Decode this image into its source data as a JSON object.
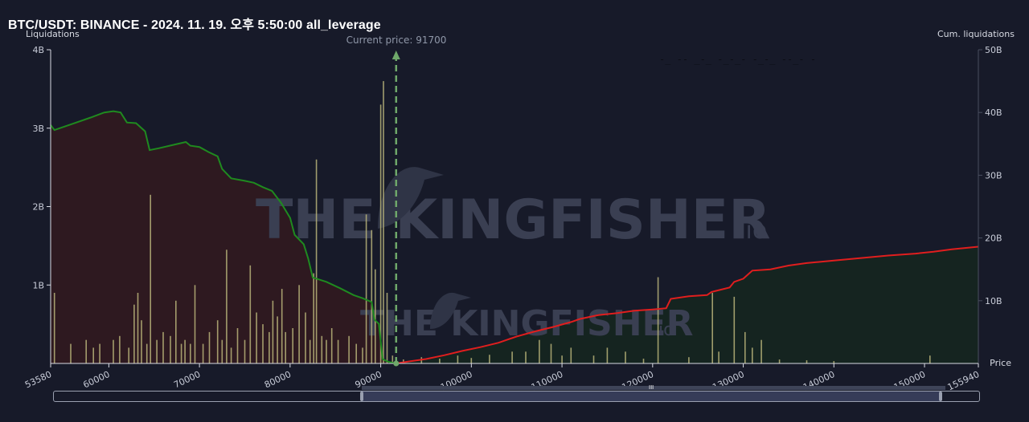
{
  "title": "BTC/USDT: BINANCE - 2024. 11. 19. 오후 5:50:00 all_leverage",
  "watermark": "THE KINGFISHER",
  "watermark_suffix": ".io",
  "current_price_label": "Current price: 91700",
  "colors": {
    "background": "#171a29",
    "short_line": "#1f8a1f",
    "long_line": "#e01e1e",
    "short_area": "#2e1920",
    "long_area": "#152420",
    "bars": "#b8b47a",
    "current_price": "#6fa86a"
  },
  "chart_data": {
    "type": "bar",
    "ylabel": "Liquidations",
    "y2label": "Cum. liquidations",
    "xlabel": "Price",
    "xlim": [
      53580,
      155940
    ],
    "ylim": [
      0,
      4000000000
    ],
    "y2lim": [
      0,
      50000000000
    ],
    "current_price": 91700,
    "x_ticks": [
      "53580",
      "60000",
      "70000",
      "80000",
      "90000",
      "100000",
      "110000",
      "120000",
      "130000",
      "140000",
      "150000",
      "155940"
    ],
    "x_tick_values": [
      53580,
      60000,
      70000,
      80000,
      90000,
      100000,
      110000,
      120000,
      130000,
      140000,
      150000,
      155940
    ],
    "y_ticks": [
      "4B",
      "3B",
      "2B",
      "1B"
    ],
    "y_tick_values": [
      4000000000,
      3000000000,
      2000000000,
      1000000000
    ],
    "y2_ticks": [
      "50B",
      "40B",
      "30B",
      "20B",
      "10B"
    ],
    "y2_tick_values": [
      50000000000,
      40000000000,
      30000000000,
      20000000000,
      10000000000
    ],
    "cum_short": [
      [
        53580,
        38000000000
      ],
      [
        54000,
        37200000000
      ],
      [
        56000,
        38200000000
      ],
      [
        58000,
        39200000000
      ],
      [
        59500,
        40000000000
      ],
      [
        60500,
        40200000000
      ],
      [
        61300,
        40000000000
      ],
      [
        62000,
        38400000000
      ],
      [
        63000,
        38300000000
      ],
      [
        64000,
        37000000000
      ],
      [
        64500,
        34000000000
      ],
      [
        65500,
        34300000000
      ],
      [
        67000,
        34800000000
      ],
      [
        68500,
        35300000000
      ],
      [
        69000,
        34700000000
      ],
      [
        70000,
        34500000000
      ],
      [
        71000,
        33700000000
      ],
      [
        72000,
        33000000000
      ],
      [
        72500,
        31000000000
      ],
      [
        73500,
        29500000000
      ],
      [
        75000,
        29100000000
      ],
      [
        76000,
        28800000000
      ],
      [
        77000,
        28100000000
      ],
      [
        78000,
        27500000000
      ],
      [
        79000,
        25600000000
      ],
      [
        80000,
        23200000000
      ],
      [
        80500,
        20500000000
      ],
      [
        81500,
        19000000000
      ],
      [
        82000,
        16700000000
      ],
      [
        82500,
        13700000000
      ],
      [
        84000,
        13000000000
      ],
      [
        85500,
        12000000000
      ],
      [
        87000,
        10900000000
      ],
      [
        88000,
        10400000000
      ],
      [
        89000,
        9800000000
      ],
      [
        89300,
        7000000000
      ],
      [
        89800,
        6300000000
      ],
      [
        90200,
        700000000
      ],
      [
        90600,
        400000000
      ],
      [
        91000,
        200000000
      ],
      [
        91700,
        0
      ]
    ],
    "cum_long": [
      [
        91700,
        0
      ],
      [
        93000,
        300000000
      ],
      [
        95000,
        700000000
      ],
      [
        97000,
        1300000000
      ],
      [
        99000,
        2000000000
      ],
      [
        101000,
        2600000000
      ],
      [
        103000,
        3300000000
      ],
      [
        105000,
        4300000000
      ],
      [
        107000,
        5100000000
      ],
      [
        109000,
        5800000000
      ],
      [
        111000,
        6600000000
      ],
      [
        112000,
        7100000000
      ],
      [
        114000,
        7700000000
      ],
      [
        116000,
        8000000000
      ],
      [
        118000,
        8400000000
      ],
      [
        120000,
        8600000000
      ],
      [
        121500,
        8800000000
      ],
      [
        122000,
        10300000000
      ],
      [
        124000,
        10700000000
      ],
      [
        126000,
        10900000000
      ],
      [
        126500,
        11400000000
      ],
      [
        128500,
        12100000000
      ],
      [
        129000,
        13000000000
      ],
      [
        130000,
        13500000000
      ],
      [
        131000,
        14800000000
      ],
      [
        133000,
        15000000000
      ],
      [
        135000,
        15600000000
      ],
      [
        137000,
        16000000000
      ],
      [
        140000,
        16400000000
      ],
      [
        143000,
        16800000000
      ],
      [
        146000,
        17200000000
      ],
      [
        149000,
        17500000000
      ],
      [
        151000,
        17800000000
      ],
      [
        153000,
        18200000000
      ],
      [
        155940,
        18600000000
      ]
    ],
    "bars": [
      [
        54000,
        900000000
      ],
      [
        55800,
        250000000
      ],
      [
        57500,
        300000000
      ],
      [
        58300,
        200000000
      ],
      [
        59000,
        250000000
      ],
      [
        60500,
        300000000
      ],
      [
        61200,
        350000000
      ],
      [
        62200,
        200000000
      ],
      [
        62800,
        750000000
      ],
      [
        63200,
        900000000
      ],
      [
        63600,
        550000000
      ],
      [
        64200,
        250000000
      ],
      [
        64600,
        2150000000
      ],
      [
        65300,
        300000000
      ],
      [
        66000,
        400000000
      ],
      [
        66800,
        350000000
      ],
      [
        67400,
        800000000
      ],
      [
        68000,
        250000000
      ],
      [
        68400,
        300000000
      ],
      [
        69000,
        250000000
      ],
      [
        69500,
        1000000000
      ],
      [
        70400,
        250000000
      ],
      [
        71100,
        400000000
      ],
      [
        72000,
        550000000
      ],
      [
        72500,
        300000000
      ],
      [
        73000,
        1450000000
      ],
      [
        73500,
        200000000
      ],
      [
        74200,
        450000000
      ],
      [
        75000,
        300000000
      ],
      [
        75600,
        1250000000
      ],
      [
        76300,
        650000000
      ],
      [
        77000,
        500000000
      ],
      [
        77700,
        400000000
      ],
      [
        78100,
        800000000
      ],
      [
        78600,
        600000000
      ],
      [
        79100,
        950000000
      ],
      [
        79500,
        400000000
      ],
      [
        80300,
        450000000
      ],
      [
        81000,
        1000000000
      ],
      [
        81700,
        650000000
      ],
      [
        82200,
        300000000
      ],
      [
        82600,
        1150000000
      ],
      [
        82900,
        2600000000
      ],
      [
        83500,
        350000000
      ],
      [
        84000,
        300000000
      ],
      [
        84600,
        450000000
      ],
      [
        85300,
        300000000
      ],
      [
        86500,
        350000000
      ],
      [
        87300,
        250000000
      ],
      [
        88000,
        200000000
      ],
      [
        88400,
        1900000000
      ],
      [
        89000,
        1700000000
      ],
      [
        89400,
        1200000000
      ],
      [
        90000,
        3300000000
      ],
      [
        90300,
        3600000000
      ],
      [
        90700,
        900000000
      ],
      [
        91300,
        100000000
      ],
      [
        92500,
        50000000
      ],
      [
        94500,
        80000000
      ],
      [
        96500,
        60000000
      ],
      [
        98500,
        100000000
      ],
      [
        100000,
        70000000
      ],
      [
        102000,
        110000000
      ],
      [
        104500,
        150000000
      ],
      [
        106000,
        150000000
      ],
      [
        107500,
        300000000
      ],
      [
        108800,
        250000000
      ],
      [
        110000,
        100000000
      ],
      [
        111000,
        200000000
      ],
      [
        113500,
        100000000
      ],
      [
        115000,
        200000000
      ],
      [
        117000,
        150000000
      ],
      [
        119000,
        60000000
      ],
      [
        120600,
        1100000000
      ],
      [
        124000,
        80000000
      ],
      [
        126600,
        900000000
      ],
      [
        127300,
        150000000
      ],
      [
        129000,
        850000000
      ],
      [
        130200,
        400000000
      ],
      [
        131000,
        200000000
      ],
      [
        132000,
        300000000
      ],
      [
        134000,
        50000000
      ],
      [
        137000,
        40000000
      ],
      [
        140000,
        30000000
      ],
      [
        150600,
        100000000
      ]
    ]
  },
  "scrollbar": {
    "start": 0.333,
    "end": 0.958,
    "grip_label": "III"
  }
}
